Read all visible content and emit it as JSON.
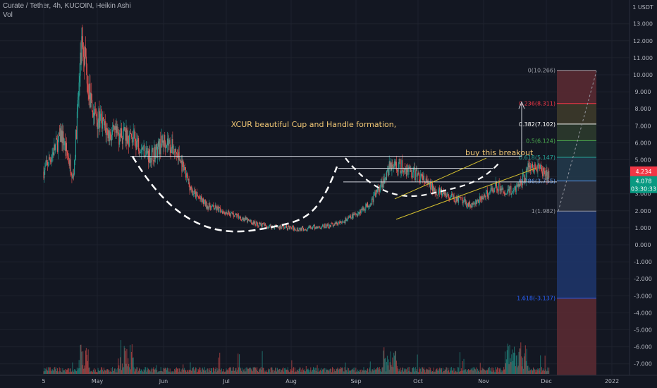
{
  "header": {
    "symbol_line": "Curate / Tether, 4h, KUCOIN, Heikin Ashi",
    "indicator": "Vol"
  },
  "chart_data": {
    "type": "candlestick",
    "price_unit": "USDT",
    "y_axis": {
      "ticks": [
        "13.000",
        "12.000",
        "11.000",
        "10.000",
        "9.000",
        "8.000",
        "7.000",
        "6.000",
        "5.000",
        "4.000",
        "3.000",
        "2.000",
        "1.000",
        "0.000",
        "-1.000",
        "-2.000",
        "-3.000",
        "-4.000",
        "-5.000",
        "-6.000",
        "-7.000"
      ],
      "ylim": [
        -7.8,
        14.0
      ],
      "unit_label": "USDT"
    },
    "x_axis": {
      "ticks": [
        "5",
        "May",
        "Jun",
        "Jul",
        "Aug",
        "Sep",
        "Oct",
        "Nov",
        "Dec",
        "2022"
      ]
    },
    "price_path": [
      {
        "t": 0,
        "p": 4.3
      },
      {
        "t": 0.6,
        "p": 6.5
      },
      {
        "t": 1.0,
        "p": 4.0
      },
      {
        "t": 1.3,
        "p": 12.5
      },
      {
        "t": 1.6,
        "p": 8.0
      },
      {
        "t": 2.2,
        "p": 6.5
      },
      {
        "t": 3.0,
        "p": 6.3
      },
      {
        "t": 3.6,
        "p": 5.2
      },
      {
        "t": 4.1,
        "p": 6.2
      },
      {
        "t": 4.5,
        "p": 5.3
      },
      {
        "t": 5.0,
        "p": 3.1
      },
      {
        "t": 5.5,
        "p": 2.3
      },
      {
        "t": 6.0,
        "p": 2.0
      },
      {
        "t": 6.5,
        "p": 1.7
      },
      {
        "t": 7.0,
        "p": 1.3
      },
      {
        "t": 7.5,
        "p": 1.1
      },
      {
        "t": 8.0,
        "p": 1.05
      },
      {
        "t": 8.5,
        "p": 0.95
      },
      {
        "t": 9.0,
        "p": 1.0
      },
      {
        "t": 9.5,
        "p": 1.1
      },
      {
        "t": 10.0,
        "p": 1.3
      },
      {
        "t": 10.5,
        "p": 1.8
      },
      {
        "t": 11.0,
        "p": 2.5
      },
      {
        "t": 11.4,
        "p": 3.8
      },
      {
        "t": 11.7,
        "p": 4.8
      },
      {
        "t": 12.0,
        "p": 4.6
      },
      {
        "t": 12.3,
        "p": 4.3
      },
      {
        "t": 12.6,
        "p": 4.1
      },
      {
        "t": 13.0,
        "p": 3.4
      },
      {
        "t": 13.5,
        "p": 2.9
      },
      {
        "t": 14.0,
        "p": 2.6
      },
      {
        "t": 14.4,
        "p": 2.3
      },
      {
        "t": 14.8,
        "p": 2.8
      },
      {
        "t": 15.2,
        "p": 3.5
      },
      {
        "t": 15.6,
        "p": 3.1
      },
      {
        "t": 16.0,
        "p": 3.5
      },
      {
        "t": 16.4,
        "p": 4.8
      },
      {
        "t": 16.8,
        "p": 4.2
      },
      {
        "t": 17.0,
        "p": 4.078
      }
    ],
    "current_price": "4.078",
    "countdown": "03:30:33",
    "last_tag": "4.234",
    "annotations": {
      "title_text": "XCUR beautiful Cup and Handle formation,",
      "breakout_text": "buy this breakout"
    },
    "fib_levels": [
      {
        "ratio": "0",
        "price": 10.266,
        "label": "0(10.266)",
        "color": "#9598a1"
      },
      {
        "ratio": "0.236",
        "price": 8.311,
        "label": "0.236(8.311)",
        "color": "#f23645"
      },
      {
        "ratio": "0.382",
        "price": 7.102,
        "label": "0.382(7.102)",
        "color": "#ffffff"
      },
      {
        "ratio": "0.5",
        "price": 6.124,
        "label": "0.5(6.124)",
        "color": "#4caf50"
      },
      {
        "ratio": "0.618",
        "price": 5.147,
        "label": "0.618(5.147)",
        "color": "#26a69a"
      },
      {
        "ratio": "0.786",
        "price": 3.755,
        "label": "0.786(3.755)",
        "color": "#5b9cf6"
      },
      {
        "ratio": "1",
        "price": 1.982,
        "label": "1(1.982)",
        "color": "#9598a1"
      },
      {
        "ratio": "1.618",
        "price": -3.137,
        "label": "1.618(-3.137)",
        "color": "#2962ff"
      }
    ],
    "colors": {
      "up": "#26a69a",
      "down": "#ef5350",
      "background": "#131722",
      "grid": "#1e222d",
      "channel": "#d4c030",
      "dash": "#ffffff"
    },
    "grid": true
  }
}
